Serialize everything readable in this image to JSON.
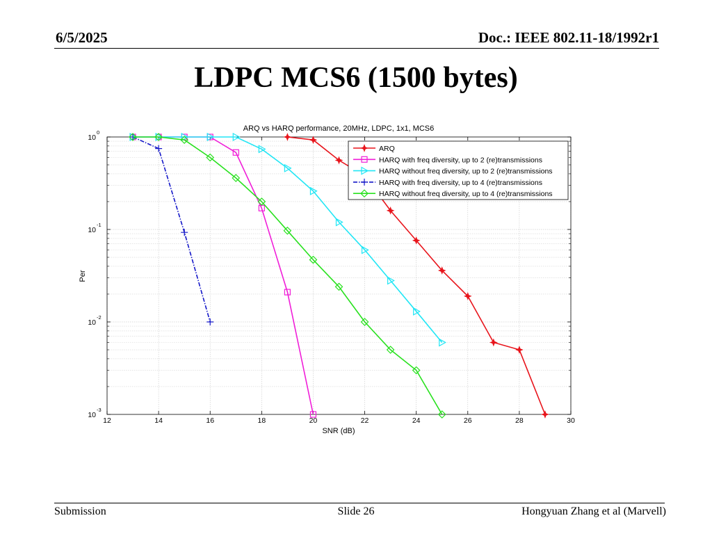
{
  "header": {
    "date": "6/5/2025",
    "doc": "Doc.: IEEE 802.11-18/1992r1"
  },
  "slide": {
    "title": "LDPC MCS6 (1500 bytes)"
  },
  "footer": {
    "left": "Submission",
    "center": "Slide 26",
    "right": "Hongyuan Zhang et al (Marvell)"
  },
  "chart_data": {
    "type": "line",
    "title": "ARQ vs HARQ performance, 20MHz, LDPC, 1x1, MCS6",
    "xlabel": "SNR (dB)",
    "ylabel": "Per",
    "xlim": [
      12,
      30
    ],
    "ylim": [
      0.001,
      1
    ],
    "yscale": "log",
    "grid": true,
    "legend_position": "top-right",
    "xticks": [
      "12",
      "14",
      "16",
      "18",
      "20",
      "22",
      "24",
      "26",
      "28",
      "30"
    ],
    "yticks": [
      {
        "base": "10",
        "exp": "0"
      },
      {
        "base": "10",
        "exp": "-1"
      },
      {
        "base": "10",
        "exp": "-2"
      },
      {
        "base": "10",
        "exp": "-3"
      }
    ],
    "series": [
      {
        "name": "ARQ",
        "color": "#e8141b",
        "marker": "star",
        "dash": "solid",
        "x": [
          19,
          20,
          21,
          22,
          23,
          24,
          25,
          26,
          27,
          28,
          29
        ],
        "y": [
          1.0,
          0.93,
          0.56,
          0.38,
          0.16,
          0.076,
          0.036,
          0.019,
          0.006,
          0.005,
          0.001
        ]
      },
      {
        "name": "HARQ with freq diversity, up to 2 (re)transmissions",
        "color": "#f01ed8",
        "marker": "square",
        "dash": "solid",
        "x": [
          13,
          14,
          15,
          16,
          17,
          18,
          19,
          20
        ],
        "y": [
          1.0,
          1.0,
          1.0,
          1.0,
          0.68,
          0.17,
          0.021,
          0.001
        ]
      },
      {
        "name": "HARQ without freq diversity, up to 2 (re)transmissions",
        "color": "#21e6f5",
        "marker": "triangle-right",
        "dash": "solid",
        "x": [
          13,
          14,
          15,
          16,
          17,
          18,
          19,
          20,
          21,
          22,
          23,
          24,
          25
        ],
        "y": [
          1.0,
          1.0,
          1.0,
          1.0,
          1.0,
          0.74,
          0.46,
          0.26,
          0.12,
          0.06,
          0.028,
          0.013,
          0.006
        ]
      },
      {
        "name": "HARQ with freq diversity, up to 4 (re)transmissions",
        "color": "#1417c8",
        "marker": "plus",
        "dash": "dashdot",
        "x": [
          13,
          14,
          15,
          16
        ],
        "y": [
          1.0,
          0.75,
          0.093,
          0.01
        ]
      },
      {
        "name": "HARQ without freq diversity, up to 4 (re)transmissions",
        "color": "#28e11e",
        "marker": "diamond",
        "dash": "solid",
        "x": [
          13,
          14,
          15,
          16,
          17,
          18,
          19,
          20,
          21,
          22,
          23,
          24,
          25
        ],
        "y": [
          1.0,
          1.0,
          0.93,
          0.6,
          0.36,
          0.2,
          0.097,
          0.047,
          0.024,
          0.01,
          0.005,
          0.003,
          0.001
        ]
      }
    ]
  }
}
